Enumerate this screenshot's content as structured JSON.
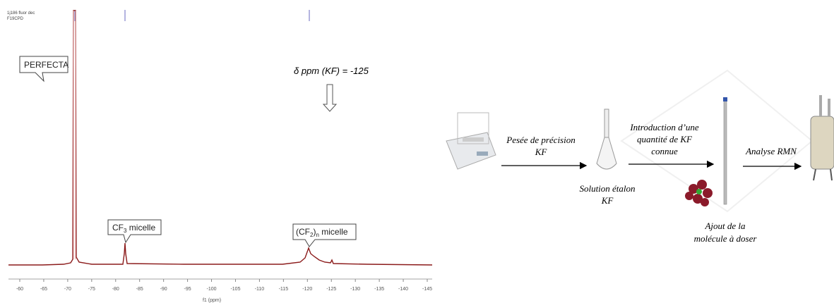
{
  "spectrum": {
    "header": [
      "1j186 fluor dec",
      "F19CPD"
    ],
    "annotation": "δ ppm (KF) = -125",
    "peaks": {
      "perfecta": "PERFECTA",
      "cf3": {
        "base": "CF",
        "sub": "3",
        "rest": " micelle"
      },
      "cf2n": {
        "open": "(CF",
        "sub": "2",
        "close": ")",
        "subn": "n",
        "rest": " micelle"
      }
    },
    "x_axis": {
      "title": "f1 (ppm)",
      "ticks": [
        -60,
        -65,
        -70,
        -75,
        -80,
        -85,
        -90,
        -95,
        -100,
        -105,
        -110,
        -115,
        -120,
        -125,
        -130,
        -135,
        -140,
        -145
      ]
    }
  },
  "workflow": {
    "step1": {
      "label": [
        "Pesée de précision",
        "KF"
      ]
    },
    "step2": {
      "label": [
        "Solution étalon",
        "KF"
      ]
    },
    "step3": {
      "label": [
        "Introduction d’une",
        "quantité de KF",
        "connue"
      ]
    },
    "step4": {
      "label": [
        "Ajout de la",
        "molécule à doser"
      ]
    },
    "step5": {
      "label": [
        "Analyse RMN"
      ]
    }
  }
}
